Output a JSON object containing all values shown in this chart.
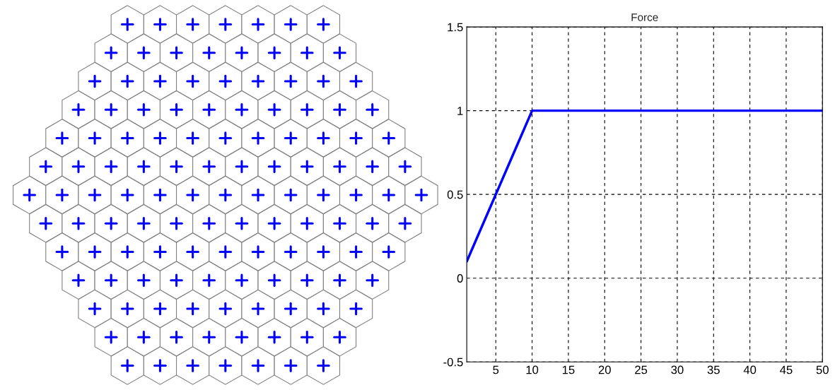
{
  "chart_data": {
    "type": "line",
    "title": "Force",
    "x": [
      1,
      8,
      10,
      50
    ],
    "series": [
      {
        "color": "#0000ff",
        "values": [
          0.1,
          0.8,
          1,
          1
        ]
      }
    ],
    "xlim": [
      1,
      50
    ],
    "ylim": [
      -0.5,
      1.5
    ],
    "xticks": [
      5,
      10,
      15,
      20,
      25,
      30,
      35,
      40,
      45,
      50
    ],
    "yticks": [
      -0.5,
      0,
      0.5,
      1,
      1.5
    ],
    "grid": true,
    "line_style": "solid",
    "marker": "none"
  }
}
